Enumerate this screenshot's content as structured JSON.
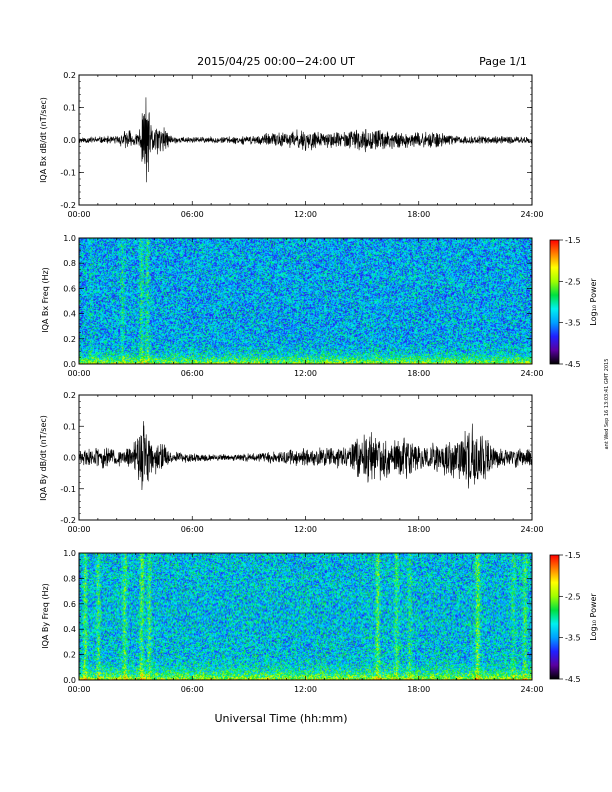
{
  "header": {
    "title": "2015/04/25  00:00−24:00 UT",
    "page": "Page 1/1"
  },
  "side_stamp": "ant Wed Sep 16 13:03:41 GMT 2015",
  "xlabel": "Universal Time (hh:mm)",
  "x_ticks": [
    "00:00",
    "06:00",
    "12:00",
    "18:00",
    "24:00"
  ],
  "colorbar": {
    "label": "Log₁₀ Power",
    "ticks": [
      "-1.5",
      "-2.5",
      "-3.5",
      "-4.5"
    ],
    "range": [
      -4.5,
      -1.5
    ],
    "colors": [
      "#000000",
      "#5a00a0",
      "#2020ff",
      "#00a0ff",
      "#00f0f0",
      "#00e040",
      "#a0ff00",
      "#ffff00",
      "#ff8000",
      "#ff0000"
    ]
  },
  "chart_data": [
    {
      "type": "line",
      "ylabel": "IQA Bx dB/dt (nT/sec)",
      "xlim": [
        0,
        24
      ],
      "ylim": [
        -0.2,
        0.2
      ],
      "y_ticks": [
        "0.2",
        "0.1",
        "0.0",
        "-0.1",
        "-0.2"
      ],
      "line_color": "#000000",
      "envelope": [
        {
          "t": 0.0,
          "amp": 0.012
        },
        {
          "t": 1.0,
          "amp": 0.012
        },
        {
          "t": 2.0,
          "amp": 0.015
        },
        {
          "t": 2.6,
          "amp": 0.04
        },
        {
          "t": 3.0,
          "amp": 0.02
        },
        {
          "t": 3.3,
          "amp": 0.06
        },
        {
          "t": 3.55,
          "amp": 0.2
        },
        {
          "t": 3.8,
          "amp": 0.05
        },
        {
          "t": 4.0,
          "amp": 0.06
        },
        {
          "t": 4.4,
          "amp": 0.05
        },
        {
          "t": 5.0,
          "amp": 0.012
        },
        {
          "t": 7.0,
          "amp": 0.01
        },
        {
          "t": 9.0,
          "amp": 0.015
        },
        {
          "t": 11.0,
          "amp": 0.03
        },
        {
          "t": 12.0,
          "amp": 0.04
        },
        {
          "t": 13.0,
          "amp": 0.025
        },
        {
          "t": 14.5,
          "amp": 0.035
        },
        {
          "t": 15.0,
          "amp": 0.04
        },
        {
          "t": 15.6,
          "amp": 0.035
        },
        {
          "t": 17.0,
          "amp": 0.03
        },
        {
          "t": 18.0,
          "amp": 0.025
        },
        {
          "t": 19.0,
          "amp": 0.03
        },
        {
          "t": 20.0,
          "amp": 0.015
        },
        {
          "t": 24.0,
          "amp": 0.012
        }
      ]
    },
    {
      "type": "heatmap",
      "ylabel": "IQA Bx Freq (Hz)",
      "xlim": [
        0,
        24
      ],
      "ylim": [
        0.0,
        1.0
      ],
      "y_ticks": [
        "1.0",
        "0.8",
        "0.6",
        "0.4",
        "0.2",
        "0.0"
      ],
      "z_range": [
        -4.5,
        -1.5
      ],
      "background_level": -3.4,
      "bursts": [
        {
          "t": 0.6,
          "level": 0.2
        },
        {
          "t": 2.3,
          "level": 0.4
        },
        {
          "t": 3.3,
          "level": 0.5
        },
        {
          "t": 3.6,
          "level": 0.5
        }
      ]
    },
    {
      "type": "line",
      "ylabel": "IQA By dB/dt (nT/sec)",
      "xlim": [
        0,
        24
      ],
      "ylim": [
        -0.2,
        0.2
      ],
      "y_ticks": [
        "0.2",
        "0.1",
        "0.0",
        "-0.1",
        "-0.2"
      ],
      "line_color": "#000000",
      "envelope": [
        {
          "t": 0.0,
          "amp": 0.025
        },
        {
          "t": 1.0,
          "amp": 0.04
        },
        {
          "t": 2.0,
          "amp": 0.03
        },
        {
          "t": 2.8,
          "amp": 0.04
        },
        {
          "t": 3.5,
          "amp": 0.16
        },
        {
          "t": 3.8,
          "amp": 0.06
        },
        {
          "t": 4.0,
          "amp": 0.08
        },
        {
          "t": 4.5,
          "amp": 0.05
        },
        {
          "t": 5.0,
          "amp": 0.02
        },
        {
          "t": 8.0,
          "amp": 0.01
        },
        {
          "t": 10.0,
          "amp": 0.02
        },
        {
          "t": 12.0,
          "amp": 0.035
        },
        {
          "t": 14.0,
          "amp": 0.04
        },
        {
          "t": 15.3,
          "amp": 0.09
        },
        {
          "t": 15.8,
          "amp": 0.1
        },
        {
          "t": 16.5,
          "amp": 0.06
        },
        {
          "t": 17.2,
          "amp": 0.08
        },
        {
          "t": 18.0,
          "amp": 0.05
        },
        {
          "t": 19.0,
          "amp": 0.05
        },
        {
          "t": 20.0,
          "amp": 0.08
        },
        {
          "t": 20.6,
          "amp": 0.12
        },
        {
          "t": 21.2,
          "amp": 0.1
        },
        {
          "t": 22.0,
          "amp": 0.04
        },
        {
          "t": 24.0,
          "amp": 0.03
        }
      ]
    },
    {
      "type": "heatmap",
      "ylabel": "IQA By Freq (Hz)",
      "xlim": [
        0,
        24
      ],
      "ylim": [
        0.0,
        1.0
      ],
      "y_ticks": [
        "1.0",
        "0.8",
        "0.6",
        "0.4",
        "0.2",
        "0.0"
      ],
      "z_range": [
        -4.5,
        -1.5
      ],
      "background_level": -3.3,
      "bursts": [
        {
          "t": 0.3,
          "level": 0.6
        },
        {
          "t": 1.0,
          "level": 0.5
        },
        {
          "t": 2.4,
          "level": 0.6
        },
        {
          "t": 3.3,
          "level": 0.6
        },
        {
          "t": 3.7,
          "level": 0.5
        },
        {
          "t": 15.8,
          "level": 0.7
        },
        {
          "t": 16.8,
          "level": 0.5
        },
        {
          "t": 17.5,
          "level": 0.4
        },
        {
          "t": 21.1,
          "level": 0.8
        },
        {
          "t": 23.0,
          "level": 0.4
        },
        {
          "t": 23.6,
          "level": 0.5
        }
      ]
    }
  ]
}
